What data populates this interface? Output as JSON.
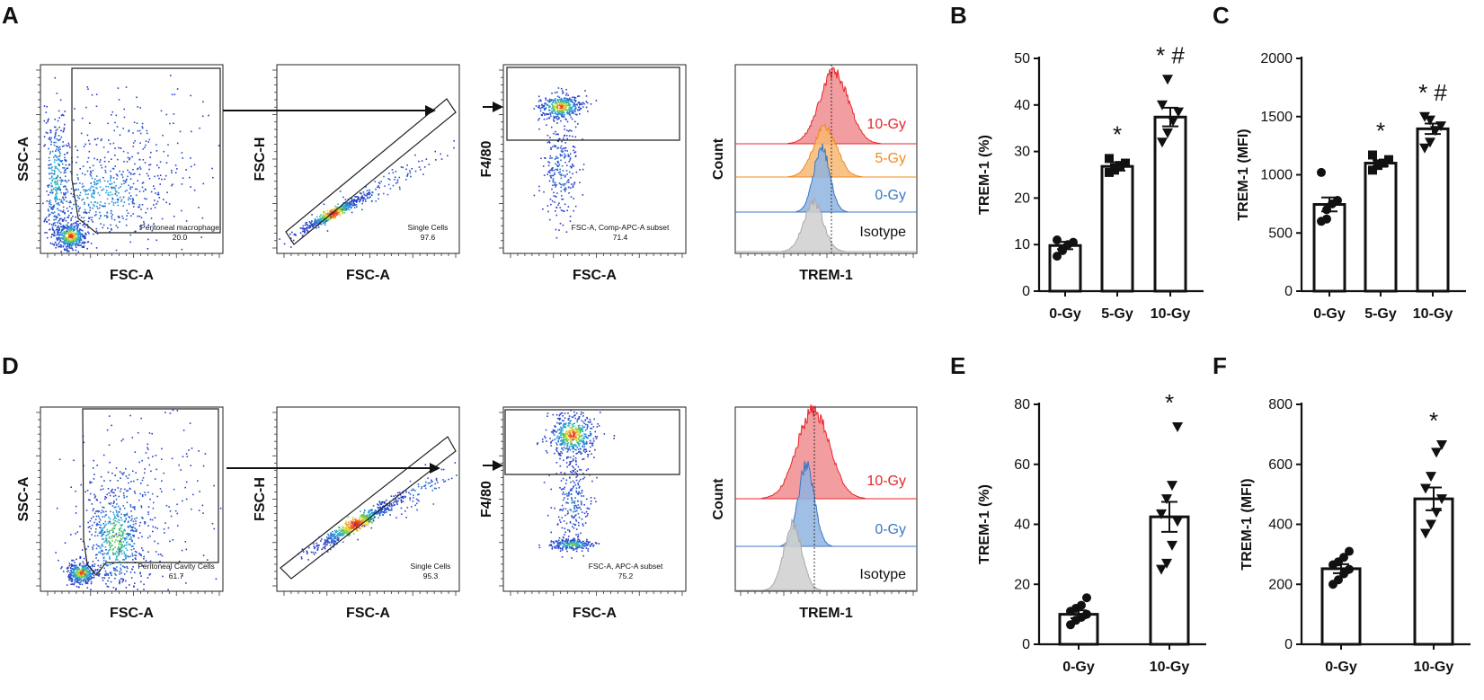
{
  "panel_letters": [
    "A",
    "B",
    "C",
    "D",
    "E",
    "F"
  ],
  "gating": {
    "row1": [
      {
        "xlabel": "FSC-A",
        "ylabel": "SSC-A",
        "gate_name": "Peritoneal macrophage",
        "gate_value": "20.0"
      },
      {
        "xlabel": "FSC-A",
        "ylabel": "FSC-H",
        "gate_name": "Single Cells",
        "gate_value": "97.6"
      },
      {
        "xlabel": "FSC-A",
        "ylabel": "F4/80",
        "gate_name": "FSC-A, Comp-APC-A subset",
        "gate_value": "71.4"
      }
    ],
    "row2": [
      {
        "xlabel": "FSC-A",
        "ylabel": "SSC-A",
        "gate_name": "Peritoneal Cavity Cells",
        "gate_value": "61.7"
      },
      {
        "xlabel": "FSC-A",
        "ylabel": "FSC-H",
        "gate_name": "Single Cells",
        "gate_value": "95.3"
      },
      {
        "xlabel": "FSC-A",
        "ylabel": "F4/80",
        "gate_name": "FSC-A, APC-A subset",
        "gate_value": "75.2"
      }
    ]
  },
  "histograms": {
    "row1": {
      "xlabel": "TREM-1",
      "ylabel": "Count",
      "tracks": [
        {
          "label": "10-Gy",
          "color": "#e8252b",
          "fill": "#f08c8f"
        },
        {
          "label": "5-Gy",
          "color": "#f28a1e",
          "fill": "#f7b873"
        },
        {
          "label": "0-Gy",
          "color": "#3b78c4",
          "fill": "#8fb4e0"
        },
        {
          "label": "Isotype",
          "color": "#a8a8a8",
          "fill": "#cfcfcf"
        }
      ]
    },
    "row2": {
      "xlabel": "TREM-1",
      "ylabel": "Count",
      "tracks": [
        {
          "label": "10-Gy",
          "color": "#e8252b",
          "fill": "#f08c8f"
        },
        {
          "label": "0-Gy",
          "color": "#3b78c4",
          "fill": "#8fb4e0"
        },
        {
          "label": "Isotype",
          "color": "#a8a8a8",
          "fill": "#cfcfcf"
        }
      ]
    }
  },
  "chart_data": [
    {
      "id": "B",
      "type": "bar",
      "ylabel": "TREM-1 (%)",
      "ylim": [
        0,
        50
      ],
      "yticks": [
        0,
        10,
        20,
        30,
        40,
        50
      ],
      "categories": [
        "0-Gy",
        "5-Gy",
        "10-Gy"
      ],
      "values": [
        9.8,
        26.8,
        37.4
      ],
      "sem": [
        0.8,
        0.9,
        2.0
      ],
      "points": [
        [
          7.5,
          9.0,
          10.0,
          10.5,
          11.0,
          8.7
        ],
        [
          25.5,
          26.0,
          27.0,
          27.5,
          28.5,
          26.5
        ],
        [
          32.0,
          34.0,
          36.5,
          38.5,
          40.0,
          45.5
        ]
      ],
      "markers": [
        "circle",
        "square",
        "triangle"
      ],
      "annotations": [
        "",
        "*",
        "*#"
      ]
    },
    {
      "id": "C",
      "type": "bar",
      "ylabel": "TREM-1 (MFI)",
      "ylim": [
        0,
        2000
      ],
      "yticks": [
        0,
        500,
        1000,
        1500,
        2000
      ],
      "categories": [
        "0-Gy",
        "5-Gy",
        "10-Gy"
      ],
      "values": [
        745,
        1100,
        1395
      ],
      "sem": [
        60,
        25,
        45
      ],
      "points": [
        [
          600,
          700,
          750,
          780,
          1020,
          620
        ],
        [
          1040,
          1080,
          1100,
          1130,
          1170,
          1090
        ],
        [
          1230,
          1280,
          1380,
          1420,
          1500,
          1470
        ]
      ],
      "markers": [
        "circle",
        "square",
        "triangle"
      ],
      "annotations": [
        "",
        "*",
        "*#"
      ]
    },
    {
      "id": "E",
      "type": "bar",
      "ylabel": "TREM-1 (%)",
      "ylim": [
        0,
        80
      ],
      "yticks": [
        0,
        20,
        40,
        60,
        80
      ],
      "categories": [
        "0-Gy",
        "10-Gy"
      ],
      "values": [
        10.0,
        42.5
      ],
      "sem": [
        1.3,
        5.0
      ],
      "points": [
        [
          6.5,
          8.0,
          9.0,
          10.0,
          11.0,
          12.0,
          13.0,
          15.5
        ],
        [
          25.0,
          27.0,
          33.0,
          41.0,
          43.5,
          48.5,
          53.0,
          72.5
        ]
      ],
      "markers": [
        "circle",
        "triangle"
      ],
      "annotations": [
        "",
        "*"
      ]
    },
    {
      "id": "F",
      "type": "bar",
      "ylabel": "TREM-1 (MFI)",
      "ylim": [
        0,
        800
      ],
      "yticks": [
        0,
        200,
        400,
        600,
        800
      ],
      "categories": [
        "0-Gy",
        "10-Gy"
      ],
      "values": [
        252,
        485
      ],
      "sem": [
        15,
        38
      ],
      "points": [
        [
          200,
          215,
          235,
          250,
          265,
          275,
          290,
          310
        ],
        [
          370,
          400,
          440,
          485,
          520,
          560,
          640,
          665
        ]
      ],
      "markers": [
        "circle",
        "triangle"
      ],
      "annotations": [
        "",
        "*"
      ]
    }
  ]
}
